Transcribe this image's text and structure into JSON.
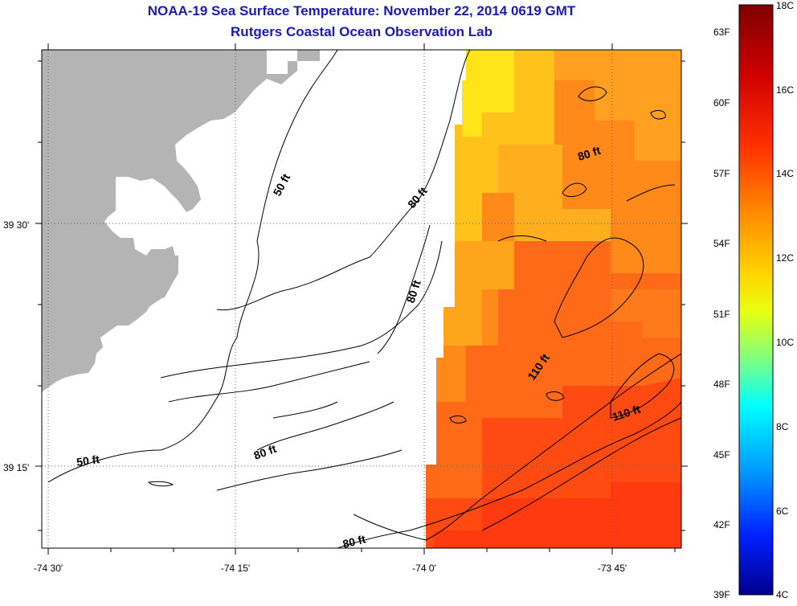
{
  "header": {
    "title": "NOAA-19 Sea Surface Temperature:  November 22, 2014 0619 GMT",
    "subtitle": "Rutgers Coastal Ocean Observation Lab"
  },
  "axes": {
    "x_ticks": [
      "-74 30'",
      "-74 15'",
      "-74 0'",
      "-73 45'"
    ],
    "y_ticks": [
      "39 30'",
      "39 15'"
    ]
  },
  "contour_labels": [
    "50 ft",
    "80 ft",
    "80 ft",
    "80 ft",
    "80 ft",
    "50 ft",
    "80 ft",
    "110 ft",
    "110 ft"
  ],
  "colorbar": {
    "f_labels": [
      "63F",
      "60F",
      "57F",
      "54F",
      "51F",
      "48F",
      "45F",
      "42F",
      "39F"
    ],
    "c_labels": [
      "18C",
      "16C",
      "14C",
      "12C",
      "10C",
      "8C",
      "6C",
      "4C"
    ],
    "colors": [
      "#7f0000",
      "#ff0000",
      "#ff8000",
      "#ffff00",
      "#00ffff",
      "#0000ff",
      "#00008f"
    ]
  },
  "colors": {
    "land": "#b4b4b4",
    "ocean_no_data": "#ffffff",
    "title": "#1a1ab4",
    "sst_warm": "#ff5a10",
    "sst_mid": "#ffa500",
    "sst_cool": "#ffe820"
  }
}
